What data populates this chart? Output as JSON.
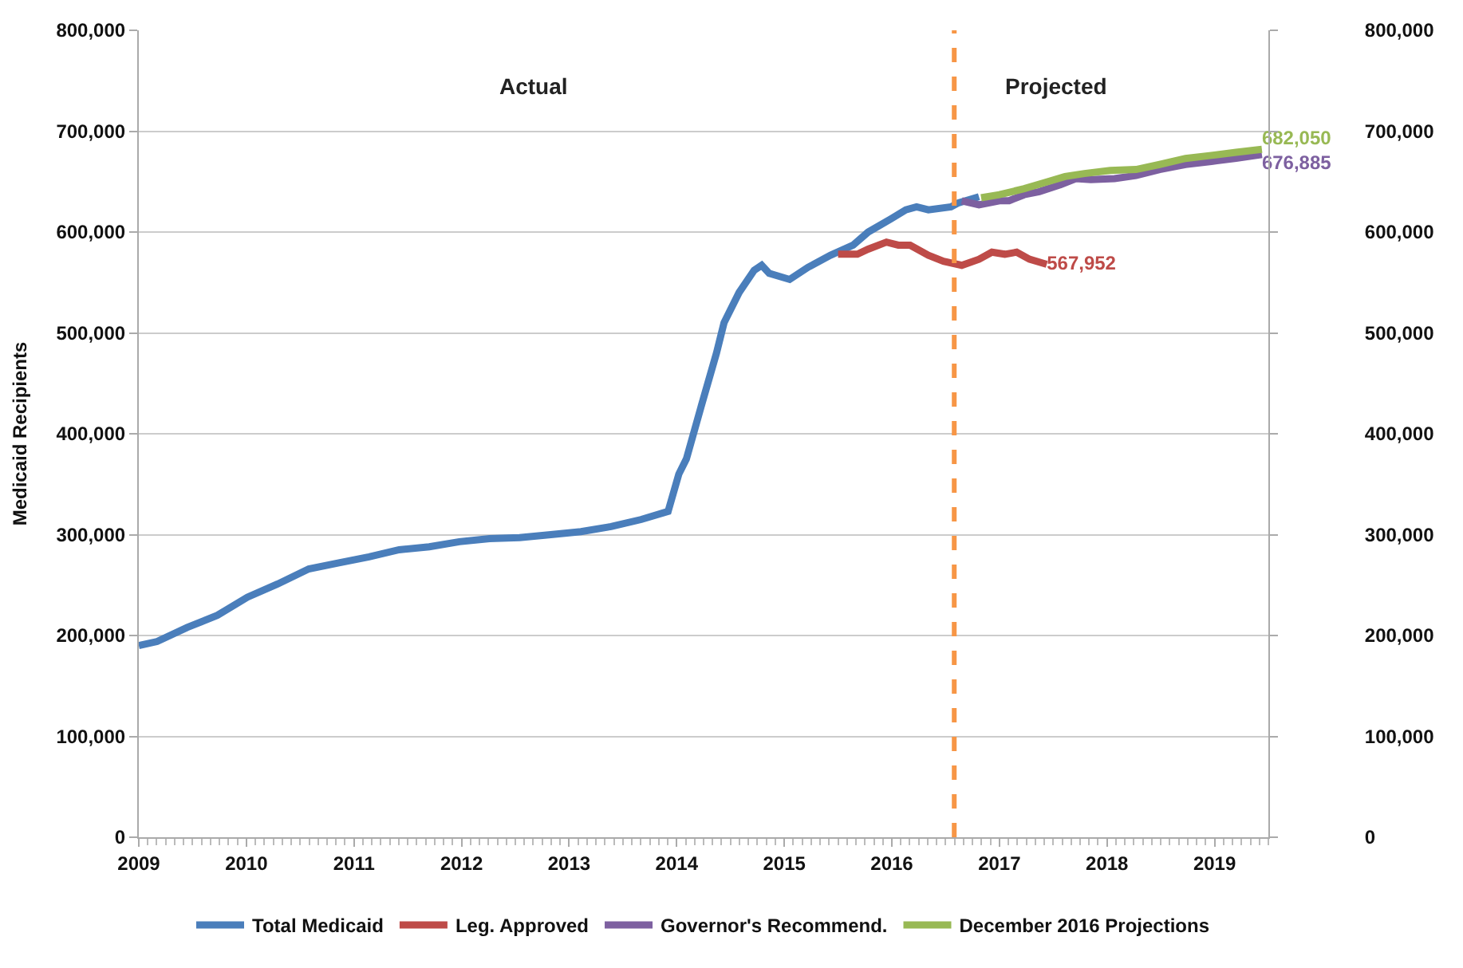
{
  "chart_data": {
    "type": "line",
    "ylabel": "Medicaid Recipients",
    "xlim": [
      2009,
      2019.5
    ],
    "xticks": [
      2009,
      2010,
      2011,
      2012,
      2013,
      2014,
      2015,
      2016,
      2017,
      2018,
      2019
    ],
    "ylim": [
      0,
      800000
    ],
    "yticks": [
      {
        "value": 0,
        "label": "0"
      },
      {
        "value": 100000,
        "label": "100,000"
      },
      {
        "value": 200000,
        "label": "200,000"
      },
      {
        "value": 300000,
        "label": "300,000"
      },
      {
        "value": 400000,
        "label": "400,000"
      },
      {
        "value": 500000,
        "label": "500,000"
      },
      {
        "value": 600000,
        "label": "600,000"
      },
      {
        "value": 700000,
        "label": "700,000"
      },
      {
        "value": 800000,
        "label": "800,000"
      }
    ],
    "y2lim": [
      0,
      800000
    ],
    "y2ticks": [
      {
        "value": 0,
        "label": "0"
      },
      {
        "value": 100000,
        "label": "100,000"
      },
      {
        "value": 200000,
        "label": "200,000"
      },
      {
        "value": 300000,
        "label": "300,000"
      },
      {
        "value": 400000,
        "label": "400,000"
      },
      {
        "value": 500000,
        "label": "500,000"
      },
      {
        "value": 600000,
        "label": "600,000"
      },
      {
        "value": 700000,
        "label": "700,000"
      },
      {
        "value": 800000,
        "label": "800,000"
      }
    ],
    "grid": "y",
    "legend": "bottom",
    "marker": "none",
    "line_style": "solid",
    "ref_lines": [
      {
        "axis": "x",
        "value": 2016.58,
        "color": "#f79646",
        "line_style": "dashed"
      }
    ],
    "annotations": [
      "Actual",
      "Projected"
    ],
    "series": [
      {
        "name": "Total Medicaid",
        "color": "#4a7ebb",
        "x": [
          2009.0,
          2009.17,
          2009.45,
          2009.73,
          2010.01,
          2010.29,
          2010.58,
          2010.86,
          2011.14,
          2011.42,
          2011.7,
          2011.98,
          2012.26,
          2012.54,
          2012.83,
          2013.11,
          2013.39,
          2013.67,
          2013.92,
          2014.02,
          2014.09,
          2014.23,
          2014.37,
          2014.44,
          2014.58,
          2014.72,
          2014.79,
          2014.86,
          2015.05,
          2015.22,
          2015.43,
          2015.64,
          2015.78,
          2015.99,
          2016.13,
          2016.23,
          2016.34,
          2016.55,
          2016.62,
          2016.81
        ],
        "values": [
          190000,
          194000,
          208000,
          220000,
          238000,
          251000,
          266000,
          272000,
          278000,
          285000,
          288000,
          293000,
          296000,
          297000,
          300000,
          303000,
          308000,
          315000,
          323000,
          360000,
          375000,
          428000,
          480000,
          510000,
          540000,
          562000,
          567000,
          559000,
          553000,
          565000,
          577000,
          587000,
          600000,
          613000,
          622000,
          625000,
          622000,
          625000,
          629000,
          635000
        ]
      },
      {
        "name": "Leg. Approved",
        "color": "#be4b48",
        "x": [
          2015.5,
          2015.68,
          2015.78,
          2015.95,
          2016.06,
          2016.17,
          2016.34,
          2016.48,
          2016.65,
          2016.81,
          2016.93,
          2017.05,
          2017.16,
          2017.28,
          2017.44
        ],
        "values": [
          578000,
          578000,
          583000,
          590000,
          587000,
          587000,
          577000,
          571000,
          567000,
          573000,
          580000,
          578000,
          580000,
          573000,
          567952
        ],
        "value_labels": [
          null,
          null,
          null,
          null,
          null,
          null,
          null,
          null,
          null,
          null,
          null,
          null,
          null,
          null,
          "567,952"
        ]
      },
      {
        "name": "Governor's Recommend.",
        "color": "#7d60a0",
        "x": [
          2016.65,
          2016.81,
          2017.0,
          2017.09,
          2017.23,
          2017.37,
          2017.57,
          2017.71,
          2017.85,
          2018.07,
          2018.27,
          2018.49,
          2018.73,
          2018.97,
          2019.2,
          2019.44
        ],
        "values": [
          631000,
          627000,
          631000,
          631000,
          637000,
          640000,
          647000,
          653000,
          652000,
          653000,
          656000,
          662000,
          667000,
          670000,
          673000,
          676885
        ],
        "value_labels": [
          null,
          null,
          null,
          null,
          null,
          null,
          null,
          null,
          null,
          null,
          null,
          null,
          null,
          null,
          null,
          "676,885"
        ]
      },
      {
        "name": "December 2016 Projections",
        "color": "#98b954",
        "x": [
          2016.83,
          2017.0,
          2017.23,
          2017.42,
          2017.61,
          2017.79,
          2018.03,
          2018.27,
          2018.49,
          2018.73,
          2018.97,
          2019.2,
          2019.44
        ],
        "values": [
          634000,
          637000,
          643000,
          649000,
          655000,
          658000,
          661000,
          662000,
          667000,
          673000,
          676000,
          679000,
          682050
        ],
        "value_labels": [
          null,
          null,
          null,
          null,
          null,
          null,
          null,
          null,
          null,
          null,
          null,
          null,
          "682,050"
        ]
      }
    ]
  }
}
